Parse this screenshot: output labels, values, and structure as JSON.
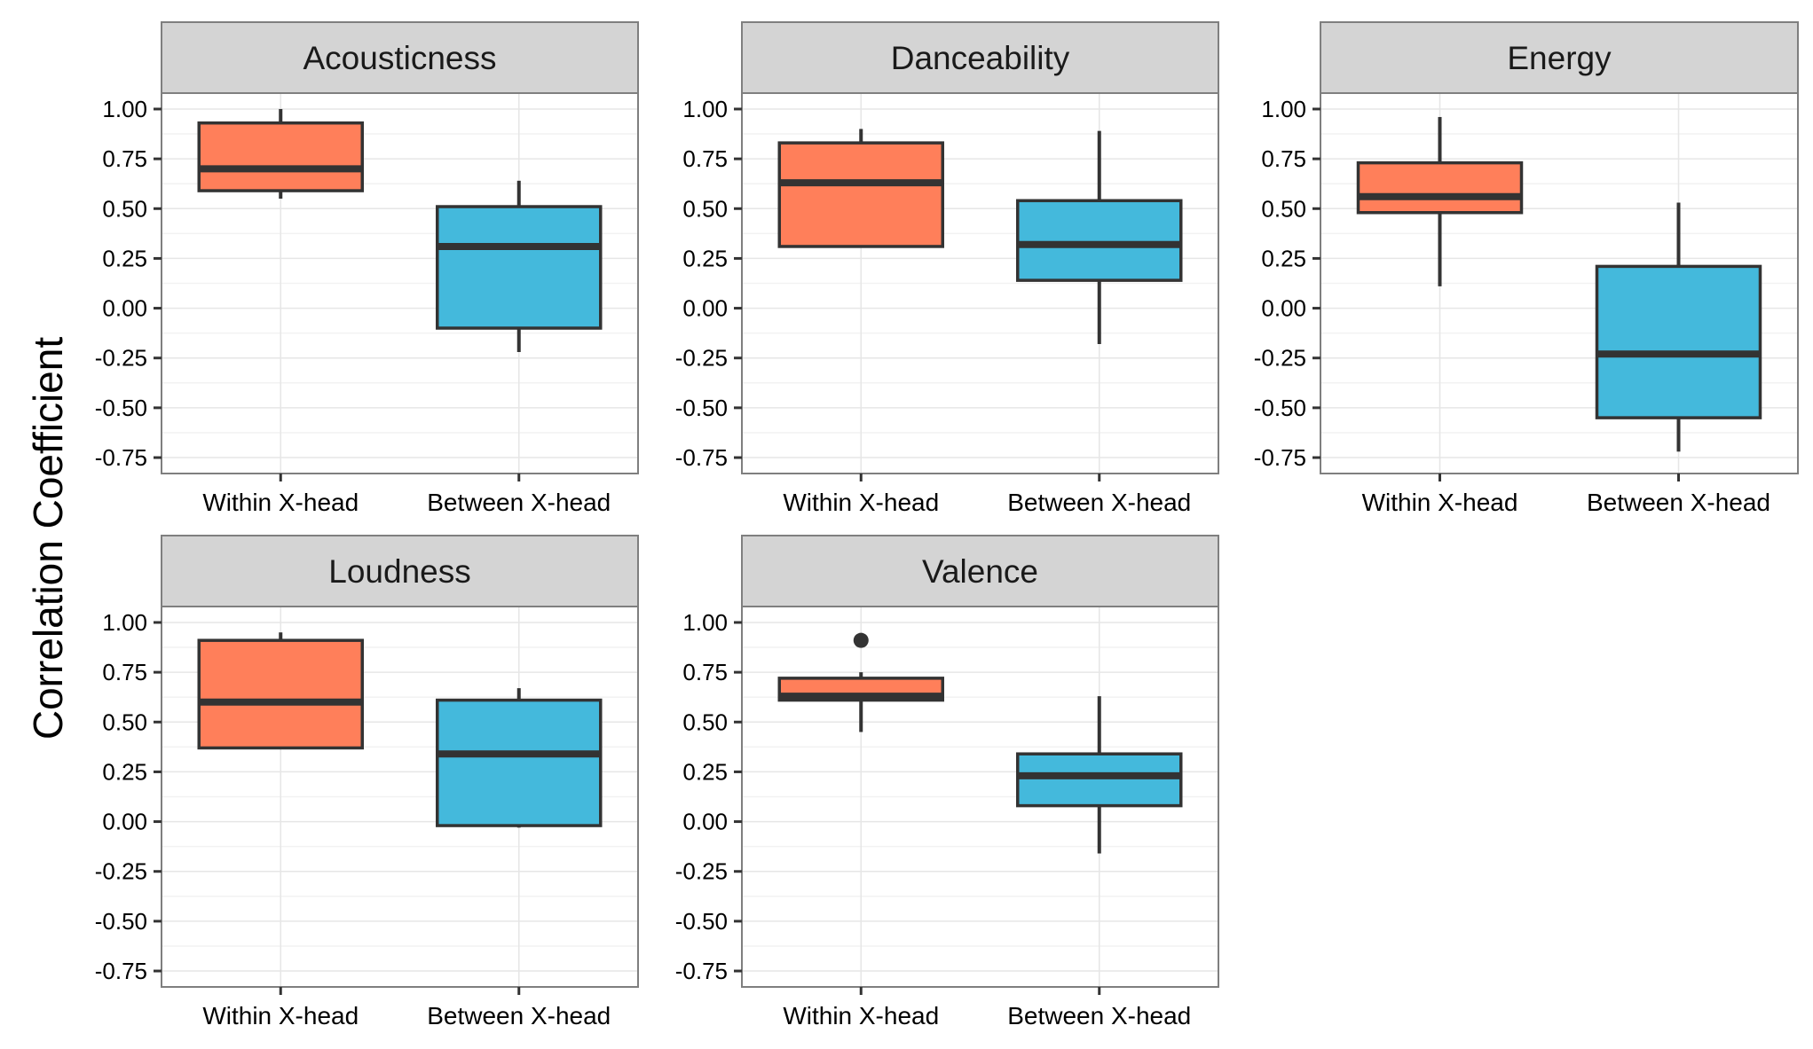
{
  "figure": {
    "ylabel": "Correlation Coefficient"
  },
  "colors": {
    "within": "#FF7F5A",
    "between": "#44B9DC",
    "strip": "#D4D4D4",
    "panel_border": "#7F7F7F",
    "grid_major": "#E6E6E6",
    "grid_minor": "#F2F2F2",
    "box_line": "#333333"
  },
  "chart_data": [
    {
      "type": "boxplot",
      "title": "Acousticness",
      "categories": [
        "Within X-head",
        "Between X-head"
      ],
      "y_ticks": [
        "1.00",
        "0.75",
        "0.50",
        "0.25",
        "0.00",
        "-0.25",
        "-0.50",
        "-0.75"
      ],
      "ylim": [
        -0.83,
        1.08
      ],
      "boxes": [
        {
          "category": "Within X-head",
          "min": 0.55,
          "q1": 0.59,
          "median": 0.7,
          "q3": 0.93,
          "max": 1.0,
          "outliers": []
        },
        {
          "category": "Between X-head",
          "min": -0.22,
          "q1": -0.1,
          "median": 0.31,
          "q3": 0.51,
          "max": 0.64,
          "outliers": []
        }
      ]
    },
    {
      "type": "boxplot",
      "title": "Danceability",
      "categories": [
        "Within X-head",
        "Between X-head"
      ],
      "y_ticks": [
        "1.00",
        "0.75",
        "0.50",
        "0.25",
        "0.00",
        "-0.25",
        "-0.50",
        "-0.75"
      ],
      "ylim": [
        -0.83,
        1.08
      ],
      "boxes": [
        {
          "category": "Within X-head",
          "min": 0.31,
          "q1": 0.31,
          "median": 0.63,
          "q3": 0.83,
          "max": 0.9,
          "outliers": []
        },
        {
          "category": "Between X-head",
          "min": -0.18,
          "q1": 0.14,
          "median": 0.32,
          "q3": 0.54,
          "max": 0.89,
          "outliers": []
        }
      ]
    },
    {
      "type": "boxplot",
      "title": "Energy",
      "categories": [
        "Within X-head",
        "Between X-head"
      ],
      "y_ticks": [
        "1.00",
        "0.75",
        "0.50",
        "0.25",
        "0.00",
        "-0.25",
        "-0.50",
        "-0.75"
      ],
      "ylim": [
        -0.83,
        1.08
      ],
      "boxes": [
        {
          "category": "Within X-head",
          "min": 0.11,
          "q1": 0.48,
          "median": 0.56,
          "q3": 0.73,
          "max": 0.96,
          "outliers": []
        },
        {
          "category": "Between X-head",
          "min": -0.72,
          "q1": -0.55,
          "median": -0.23,
          "q3": 0.21,
          "max": 0.53,
          "outliers": []
        }
      ]
    },
    {
      "type": "boxplot",
      "title": "Loudness",
      "categories": [
        "Within X-head",
        "Between X-head"
      ],
      "y_ticks": [
        "1.00",
        "0.75",
        "0.50",
        "0.25",
        "0.00",
        "-0.25",
        "-0.50",
        "-0.75"
      ],
      "ylim": [
        -0.83,
        1.08
      ],
      "boxes": [
        {
          "category": "Within X-head",
          "min": 0.37,
          "q1": 0.37,
          "median": 0.6,
          "q3": 0.91,
          "max": 0.95,
          "outliers": []
        },
        {
          "category": "Between X-head",
          "min": -0.03,
          "q1": -0.02,
          "median": 0.34,
          "q3": 0.61,
          "max": 0.67,
          "outliers": []
        }
      ]
    },
    {
      "type": "boxplot",
      "title": "Valence",
      "categories": [
        "Within X-head",
        "Between X-head"
      ],
      "y_ticks": [
        "1.00",
        "0.75",
        "0.50",
        "0.25",
        "0.00",
        "-0.25",
        "-0.50",
        "-0.75"
      ],
      "ylim": [
        -0.83,
        1.08
      ],
      "boxes": [
        {
          "category": "Within X-head",
          "min": 0.45,
          "q1": 0.61,
          "median": 0.63,
          "q3": 0.72,
          "max": 0.75,
          "outliers": [
            0.91
          ]
        },
        {
          "category": "Between X-head",
          "min": -0.16,
          "q1": 0.08,
          "median": 0.23,
          "q3": 0.34,
          "max": 0.63,
          "outliers": []
        }
      ]
    }
  ]
}
